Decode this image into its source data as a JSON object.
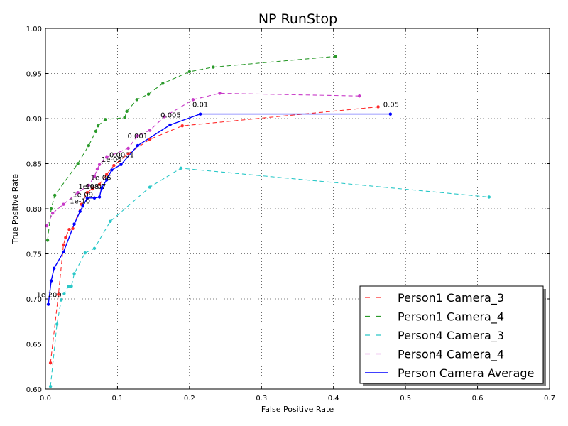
{
  "chart_data": {
    "type": "line",
    "title": "NP RunStop",
    "xlabel": "False Positive Rate",
    "ylabel": "True Positive Rate",
    "xlim": [
      0.0,
      0.7
    ],
    "ylim": [
      0.6,
      1.0
    ],
    "xticks": [
      "0.0",
      "0.1",
      "0.2",
      "0.3",
      "0.4",
      "0.5",
      "0.6",
      "0.7"
    ],
    "yticks": [
      "0.60",
      "0.65",
      "0.70",
      "0.75",
      "0.80",
      "0.85",
      "0.90",
      "0.95",
      "1.00"
    ],
    "grid": true,
    "legend_position": "lower-right",
    "series": [
      {
        "name": "Person1 Camera_3",
        "color": "#ff2a2a",
        "style": "dashed",
        "points": [
          [
            0.007,
            0.629
          ],
          [
            0.018,
            0.705
          ],
          [
            0.025,
            0.76
          ],
          [
            0.028,
            0.768
          ],
          [
            0.033,
            0.777
          ],
          [
            0.038,
            0.778
          ],
          [
            0.05,
            0.805
          ],
          [
            0.058,
            0.818
          ],
          [
            0.065,
            0.822
          ],
          [
            0.075,
            0.827
          ],
          [
            0.085,
            0.838
          ],
          [
            0.095,
            0.848
          ],
          [
            0.115,
            0.861
          ],
          [
            0.145,
            0.877
          ],
          [
            0.19,
            0.892
          ],
          [
            0.462,
            0.913
          ]
        ]
      },
      {
        "name": "Person1 Camera_4",
        "color": "#2a9a2a",
        "style": "dashed",
        "points": [
          [
            0.003,
            0.765
          ],
          [
            0.008,
            0.8
          ],
          [
            0.013,
            0.815
          ],
          [
            0.045,
            0.85
          ],
          [
            0.06,
            0.87
          ],
          [
            0.07,
            0.886
          ],
          [
            0.073,
            0.892
          ],
          [
            0.083,
            0.899
          ],
          [
            0.11,
            0.901
          ],
          [
            0.113,
            0.908
          ],
          [
            0.127,
            0.921
          ],
          [
            0.143,
            0.927
          ],
          [
            0.163,
            0.939
          ],
          [
            0.2,
            0.952
          ],
          [
            0.233,
            0.957
          ],
          [
            0.403,
            0.969
          ]
        ]
      },
      {
        "name": "Person4 Camera_3",
        "color": "#2ac8c8",
        "style": "dashed",
        "points": [
          [
            0.007,
            0.603
          ],
          [
            0.016,
            0.672
          ],
          [
            0.022,
            0.699
          ],
          [
            0.026,
            0.706
          ],
          [
            0.032,
            0.714
          ],
          [
            0.036,
            0.714
          ],
          [
            0.04,
            0.728
          ],
          [
            0.055,
            0.751
          ],
          [
            0.068,
            0.756
          ],
          [
            0.09,
            0.786
          ],
          [
            0.145,
            0.824
          ],
          [
            0.188,
            0.845
          ],
          [
            0.616,
            0.813
          ]
        ]
      },
      {
        "name": "Person4 Camera_4",
        "color": "#c83ac8",
        "style": "dashed",
        "points": [
          [
            0.002,
            0.781
          ],
          [
            0.01,
            0.795
          ],
          [
            0.025,
            0.805
          ],
          [
            0.045,
            0.818
          ],
          [
            0.06,
            0.826
          ],
          [
            0.068,
            0.836
          ],
          [
            0.072,
            0.844
          ],
          [
            0.075,
            0.849
          ],
          [
            0.085,
            0.857
          ],
          [
            0.115,
            0.867
          ],
          [
            0.128,
            0.881
          ],
          [
            0.145,
            0.887
          ],
          [
            0.165,
            0.902
          ],
          [
            0.205,
            0.921
          ],
          [
            0.242,
            0.928
          ],
          [
            0.436,
            0.925
          ]
        ]
      },
      {
        "name": "Person Camera Average",
        "color": "#0000ff",
        "style": "solid",
        "points": [
          [
            0.004,
            0.694
          ],
          [
            0.008,
            0.72
          ],
          [
            0.012,
            0.734
          ],
          [
            0.025,
            0.752
          ],
          [
            0.04,
            0.783
          ],
          [
            0.048,
            0.797
          ],
          [
            0.052,
            0.803
          ],
          [
            0.058,
            0.812
          ],
          [
            0.068,
            0.812
          ],
          [
            0.075,
            0.813
          ],
          [
            0.078,
            0.823
          ],
          [
            0.085,
            0.832
          ],
          [
            0.092,
            0.843
          ],
          [
            0.105,
            0.849
          ],
          [
            0.128,
            0.87
          ],
          [
            0.173,
            0.893
          ],
          [
            0.215,
            0.905
          ],
          [
            0.479,
            0.905
          ]
        ]
      }
    ],
    "annotations": [
      {
        "text": "1e-200",
        "x": 0.005,
        "y": 0.702
      },
      {
        "text": "1e-10",
        "x": 0.048,
        "y": 0.806
      },
      {
        "text": "1e-09",
        "x": 0.052,
        "y": 0.813
      },
      {
        "text": "1e-08",
        "x": 0.06,
        "y": 0.822
      },
      {
        "text": "1e-07",
        "x": 0.07,
        "y": 0.822
      },
      {
        "text": "1e-06",
        "x": 0.077,
        "y": 0.832
      },
      {
        "text": "1e-05",
        "x": 0.092,
        "y": 0.852
      },
      {
        "text": "0.0001",
        "x": 0.106,
        "y": 0.857
      },
      {
        "text": "0.001",
        "x": 0.128,
        "y": 0.878
      },
      {
        "text": "0.005",
        "x": 0.174,
        "y": 0.901
      },
      {
        "text": "0.01",
        "x": 0.215,
        "y": 0.913
      },
      {
        "text": "0.05",
        "x": 0.48,
        "y": 0.913
      }
    ]
  }
}
